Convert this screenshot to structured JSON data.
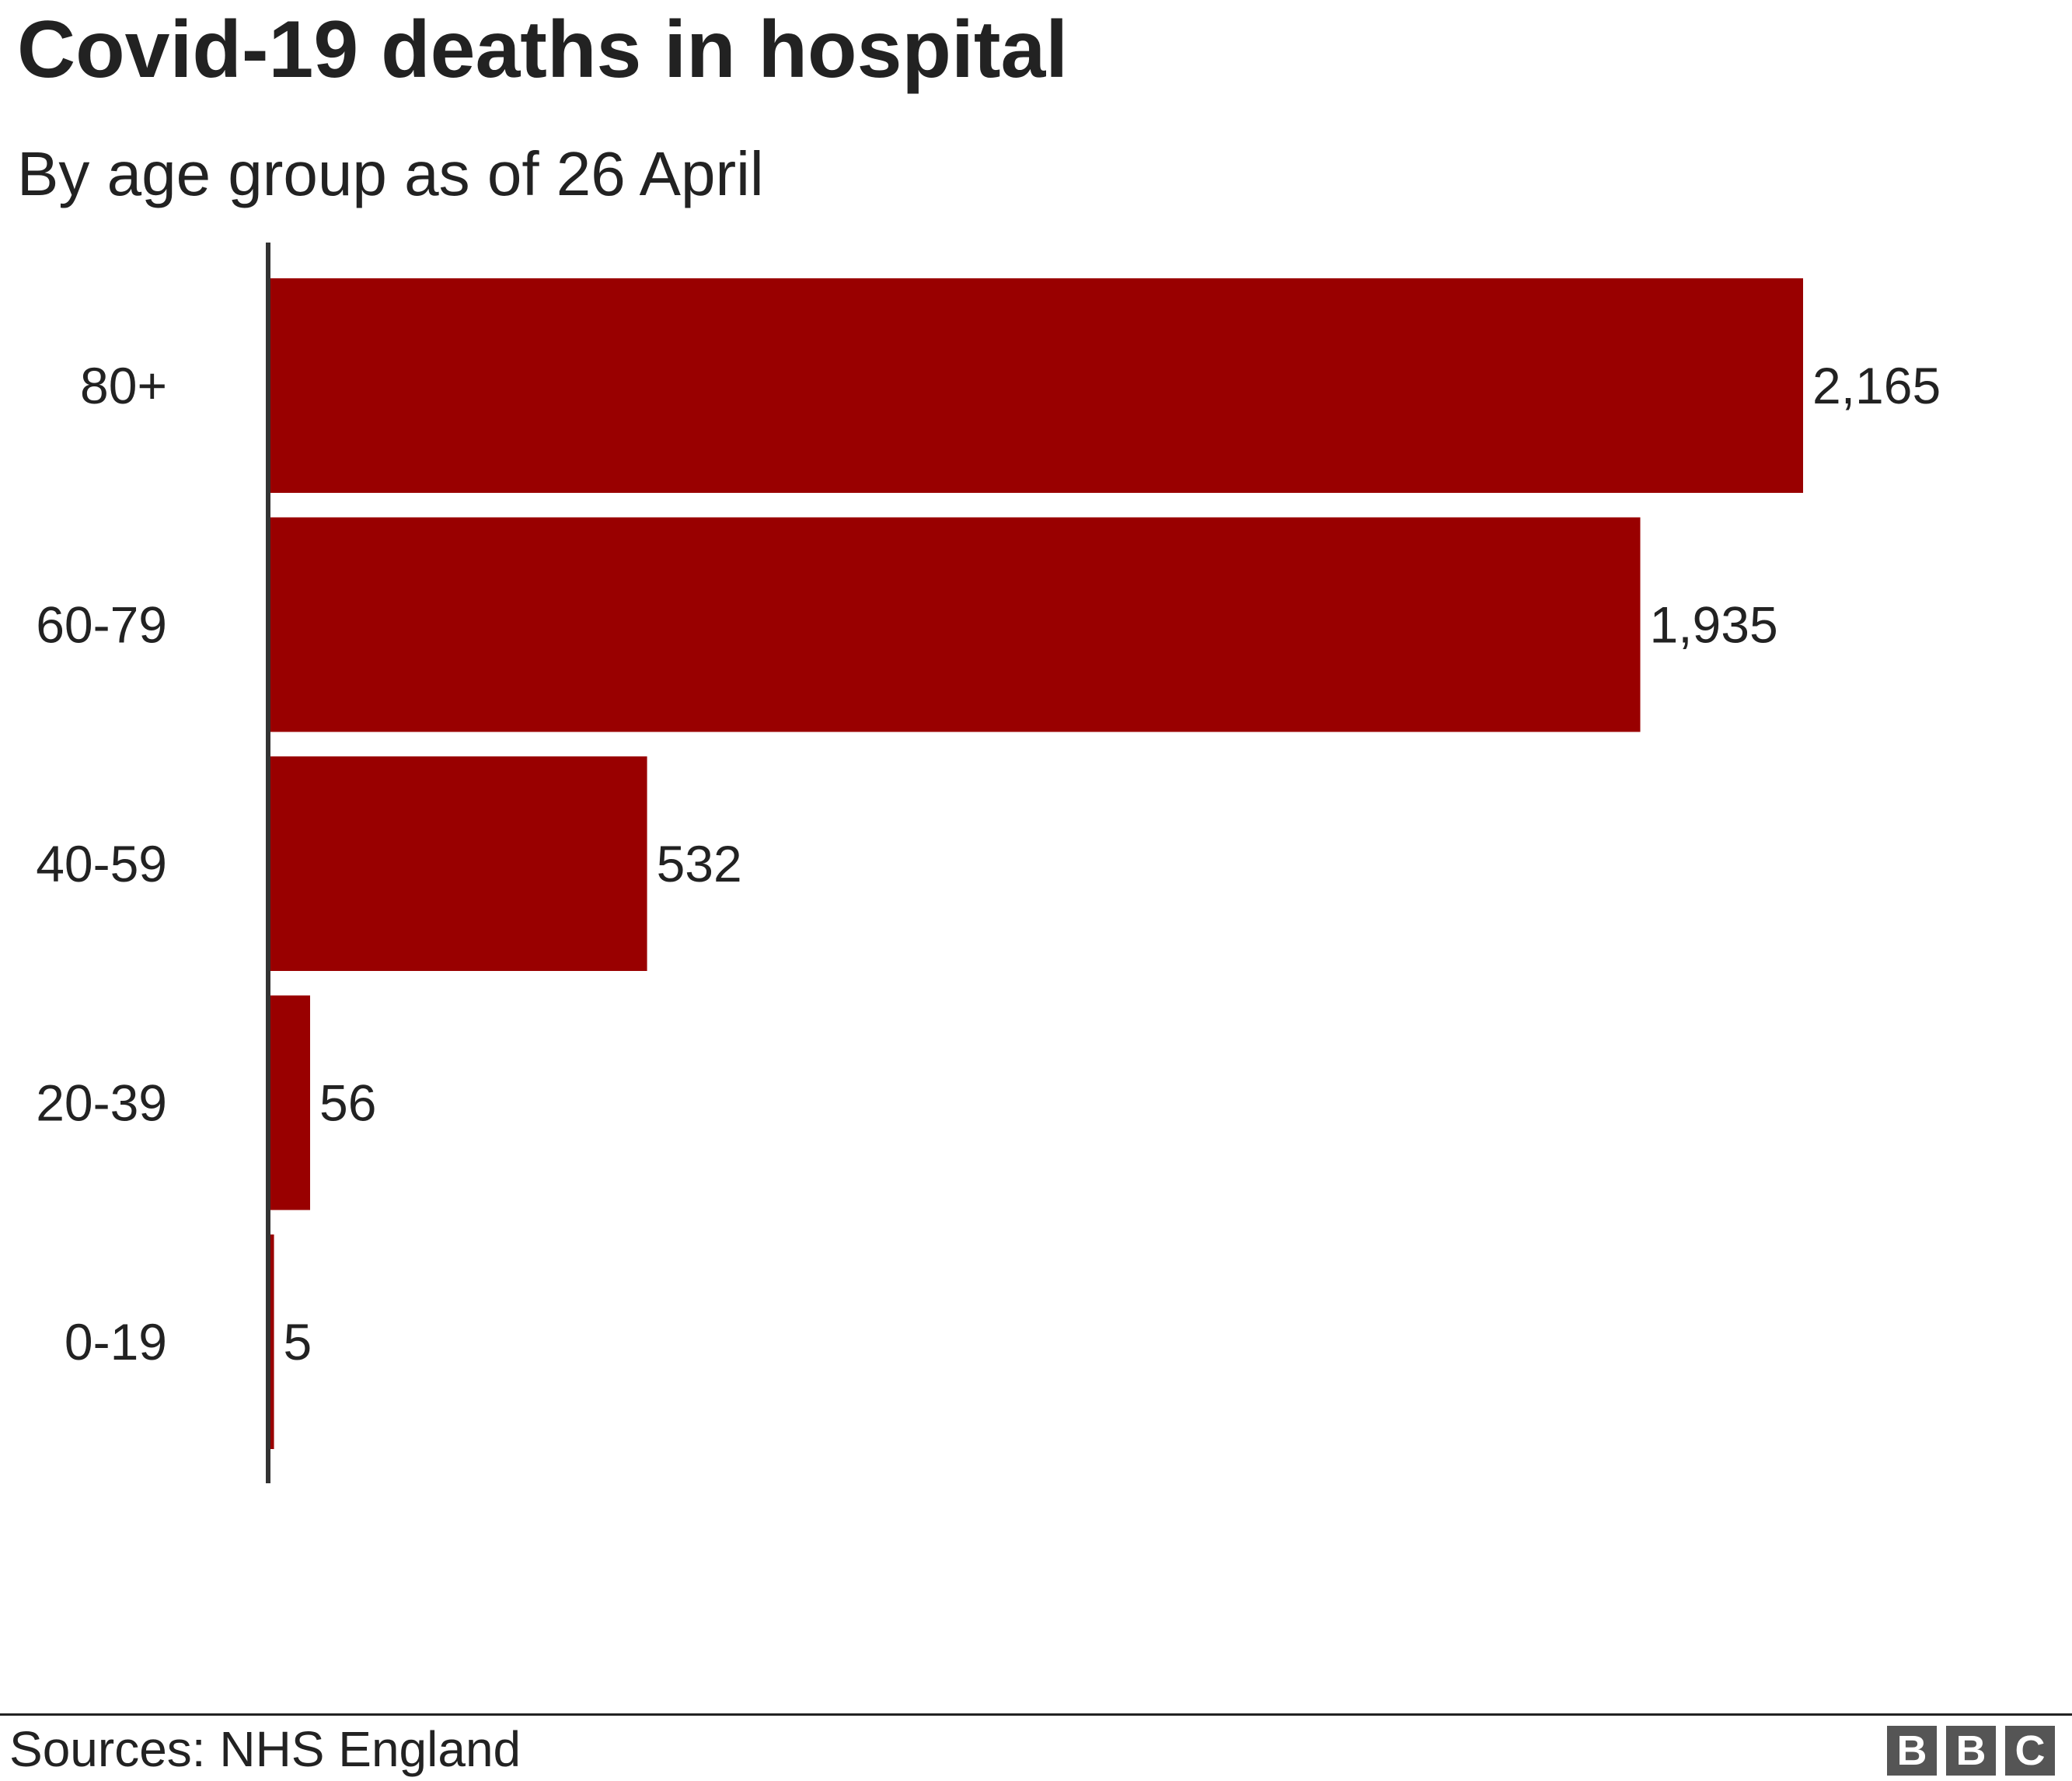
{
  "chart_data": {
    "type": "bar",
    "orientation": "horizontal",
    "title": "Covid-19 deaths in hospital",
    "subtitle": "By age group as of 26 April",
    "categories": [
      "80+",
      "60-79",
      "40-59",
      "20-39",
      "0-19"
    ],
    "values": [
      2165,
      1935,
      532,
      56,
      5
    ],
    "value_labels": [
      "2,165",
      "1,935",
      "532",
      "56",
      "5"
    ],
    "xlim": [
      0,
      2165
    ],
    "grid": false,
    "legend": "none",
    "bar_color": "#990000"
  },
  "source": "Sources: NHS England",
  "logo": [
    "B",
    "B",
    "C"
  ]
}
